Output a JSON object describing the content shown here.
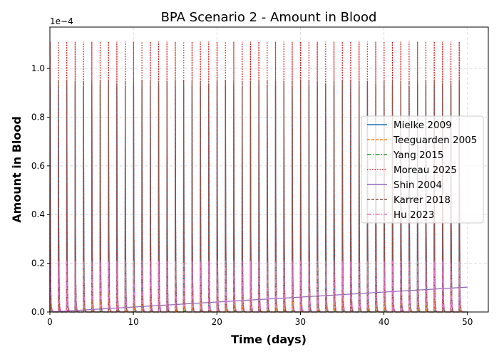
{
  "chart_data": {
    "type": "line",
    "title": "BPA Scenario 2 - Amount in Blood",
    "xlabel": "Time (days)",
    "ylabel": "Amount in Blood",
    "y_offset_label": "1e−4",
    "xlim": [
      0,
      52.5
    ],
    "ylim": [
      0,
      1.17
    ],
    "xticks": [
      "0",
      "10",
      "20",
      "30",
      "40",
      "50"
    ],
    "yticks": [
      "0.0",
      "0.2",
      "0.4",
      "0.6",
      "0.8",
      "1.0"
    ],
    "grid": true,
    "legend_position": "center-right",
    "dosing_days_first": 0,
    "dosing_days_last": 49,
    "series": [
      {
        "name": "Mielke 2009",
        "color": "#1f77b4",
        "style": "solid",
        "peak": 0.93,
        "trough": 0.0
      },
      {
        "name": "Teeguarden 2005",
        "color": "#ff7f0e",
        "style": "dashed",
        "peak": 0.08,
        "trough": 0.0
      },
      {
        "name": "Yang 2015",
        "color": "#2ca02c",
        "style": "dashdot",
        "peak": 0.01,
        "trough": 0.0
      },
      {
        "name": "Moreau 2025",
        "color": "#d62728",
        "style": "dotted",
        "peak": 1.11,
        "trough": 0.0
      },
      {
        "name": "Shin 2004",
        "color": "#9467bd",
        "style": "solid",
        "x": [
          0,
          50
        ],
        "y": [
          0.0,
          0.102
        ]
      },
      {
        "name": "Karrer 2018",
        "color": "#8c564b",
        "style": "dashed",
        "peak": 0.95,
        "trough": 0.0
      },
      {
        "name": "Hu 2023",
        "color": "#e377c2",
        "style": "dashdot",
        "peak": 0.21,
        "trough": 0.0
      }
    ]
  }
}
